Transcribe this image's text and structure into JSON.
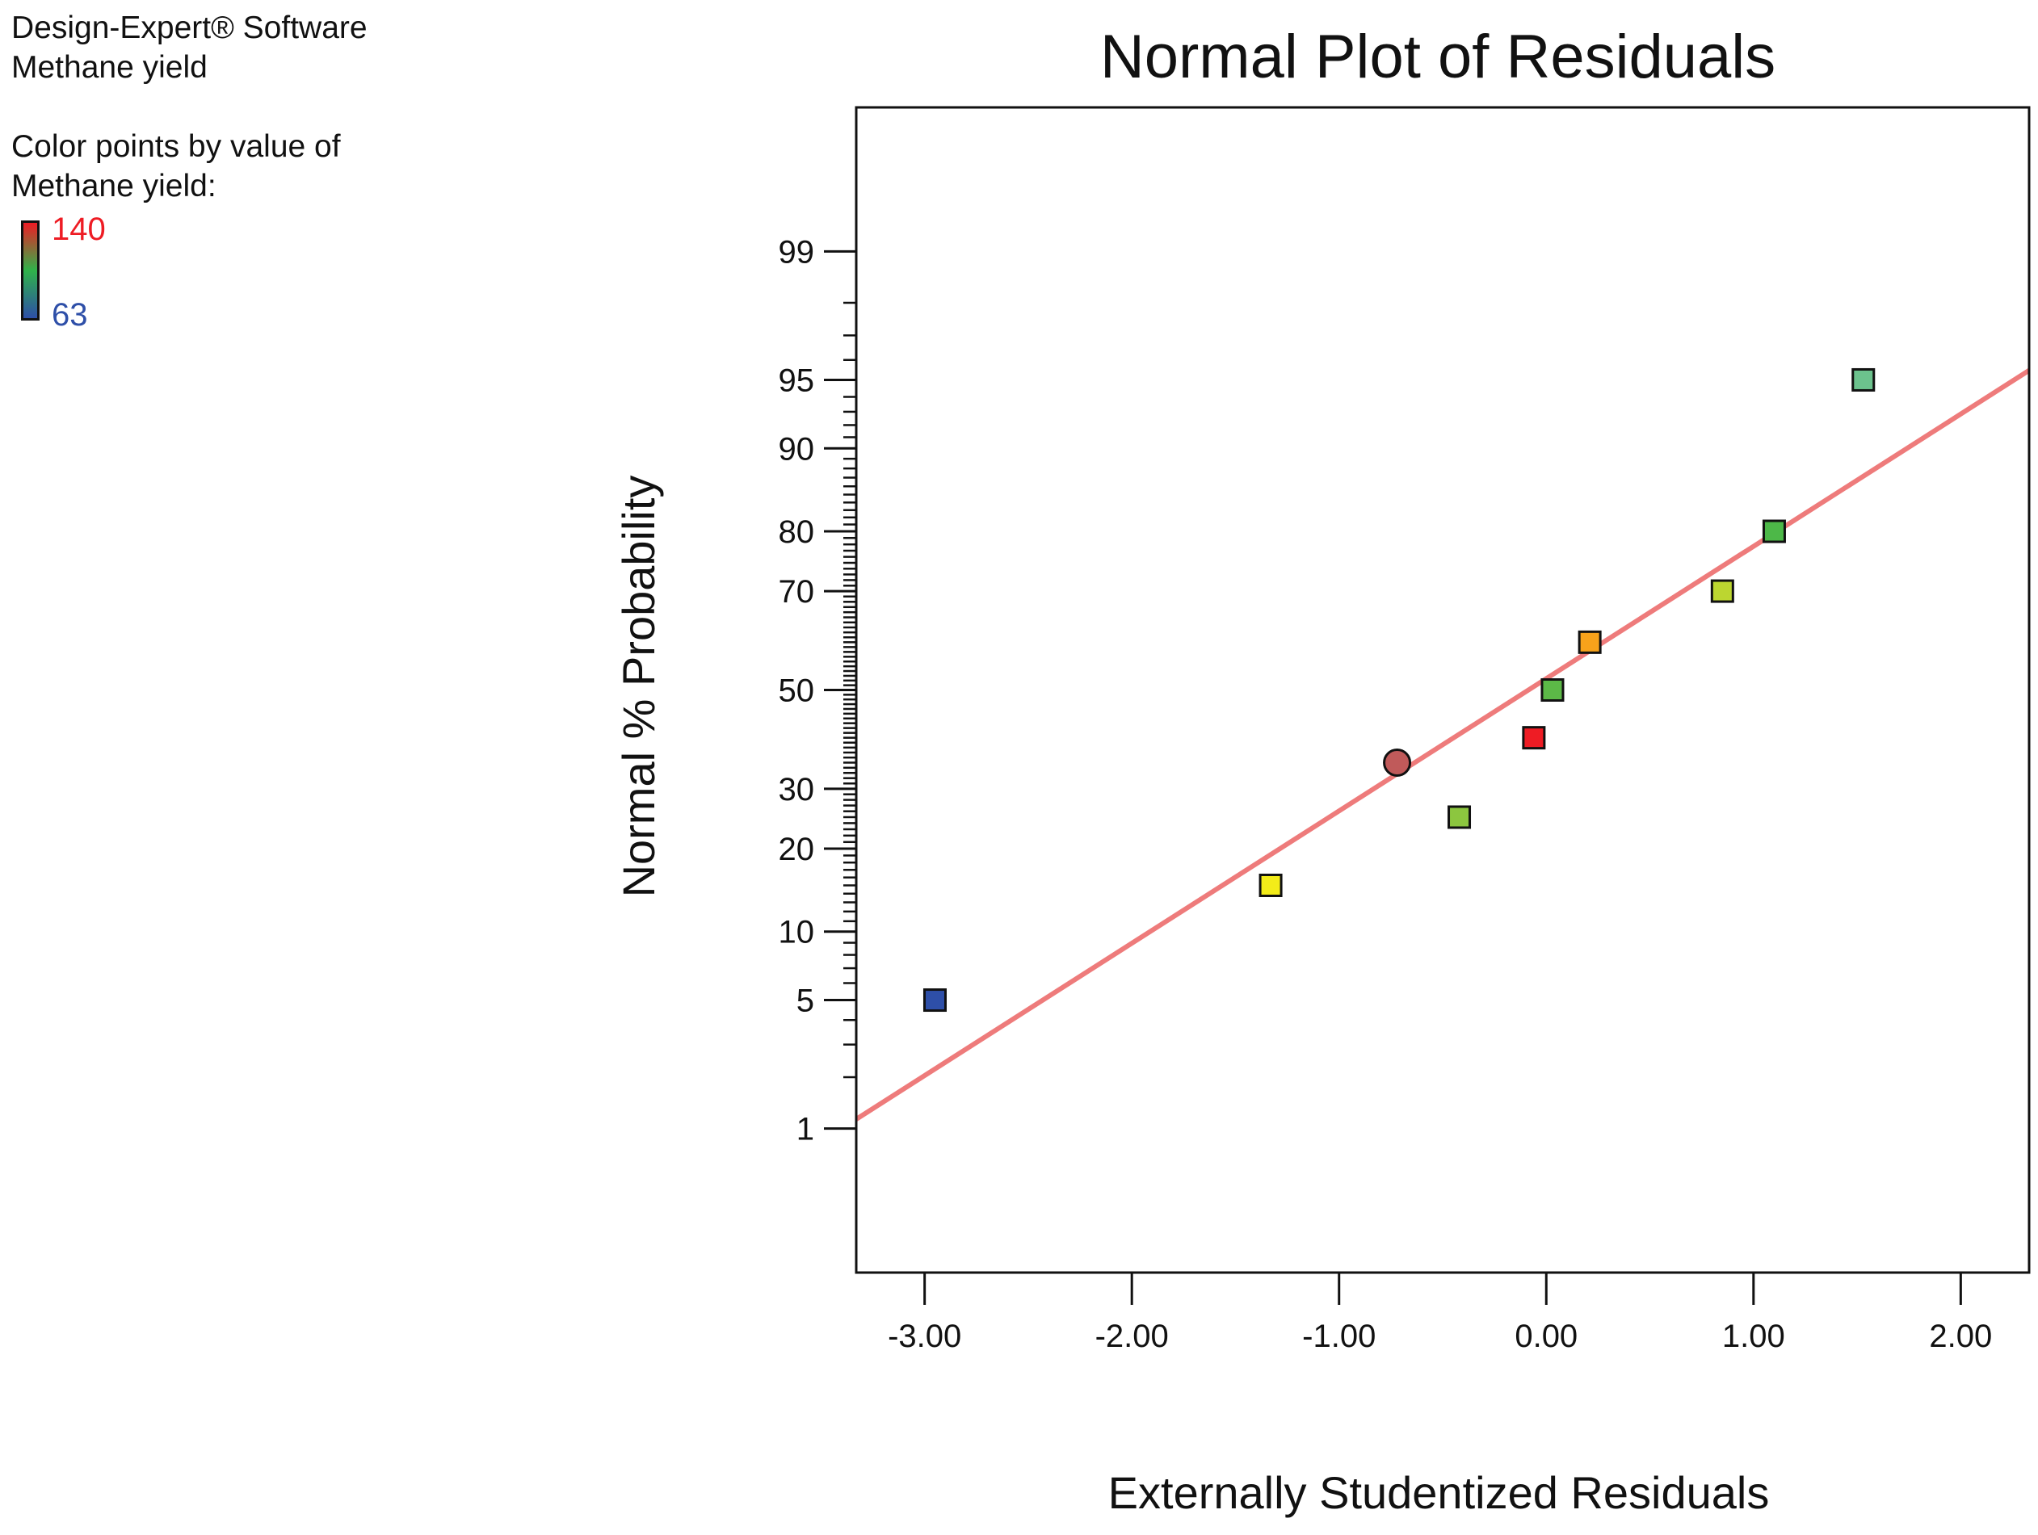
{
  "info": {
    "software": "Design-Expert® Software",
    "response": "Methane yield",
    "color_by_line1": "Color points by value of",
    "color_by_line2": "Methane yield:"
  },
  "legend": {
    "high_label": "140",
    "low_label": "63",
    "high_color": "#ee1c24",
    "mid_color": "#2fb34a",
    "low_color": "#2e4fa8"
  },
  "chart_data": {
    "type": "scatter",
    "title": "Normal Plot of Residuals",
    "xlabel": "Externally Studentized Residuals",
    "ylabel": "Normal % Probability",
    "xlim": [
      -3.33,
      2.33
    ],
    "x_ticks": [
      -3.0,
      -2.0,
      -1.0,
      0.0,
      1.0,
      2.0
    ],
    "x_tick_labels": [
      "-3.00",
      "-2.00",
      "-1.00",
      "0.00",
      "1.00",
      "2.00"
    ],
    "y_scale": "normal-probability",
    "ylim_percent": [
      0.1,
      99.9
    ],
    "y_ticks": [
      1,
      5,
      10,
      20,
      30,
      50,
      70,
      80,
      90,
      95,
      99
    ],
    "y_tick_labels": [
      "1",
      "5",
      "10",
      "20",
      "30",
      "50",
      "70",
      "80",
      "90",
      "95",
      "99"
    ],
    "grid": false,
    "points": [
      {
        "x": -2.95,
        "y": 5.0,
        "shape": "square",
        "color": "#2e4fa8"
      },
      {
        "x": -1.33,
        "y": 15.0,
        "shape": "square",
        "color": "#f3ec19"
      },
      {
        "x": -0.72,
        "y": 35.0,
        "shape": "circle",
        "color": "#c05a5a"
      },
      {
        "x": -0.42,
        "y": 25.0,
        "shape": "square",
        "color": "#8cc63f"
      },
      {
        "x": -0.06,
        "y": 40.0,
        "shape": "square",
        "color": "#ee1c24"
      },
      {
        "x": 0.03,
        "y": 50.0,
        "shape": "square",
        "color": "#5cb947"
      },
      {
        "x": 0.21,
        "y": 60.0,
        "shape": "square",
        "color": "#f7a21b"
      },
      {
        "x": 0.85,
        "y": 70.0,
        "shape": "square",
        "color": "#bcd630"
      },
      {
        "x": 1.1,
        "y": 80.0,
        "shape": "square",
        "color": "#4db848"
      },
      {
        "x": 1.53,
        "y": 95.0,
        "shape": "square",
        "color": "#6cc28d"
      }
    ],
    "reference_line": {
      "x1": -3.33,
      "y1": 1.14,
      "x2": 2.33,
      "y2": 95.5,
      "color": "#ee7b7b"
    }
  }
}
